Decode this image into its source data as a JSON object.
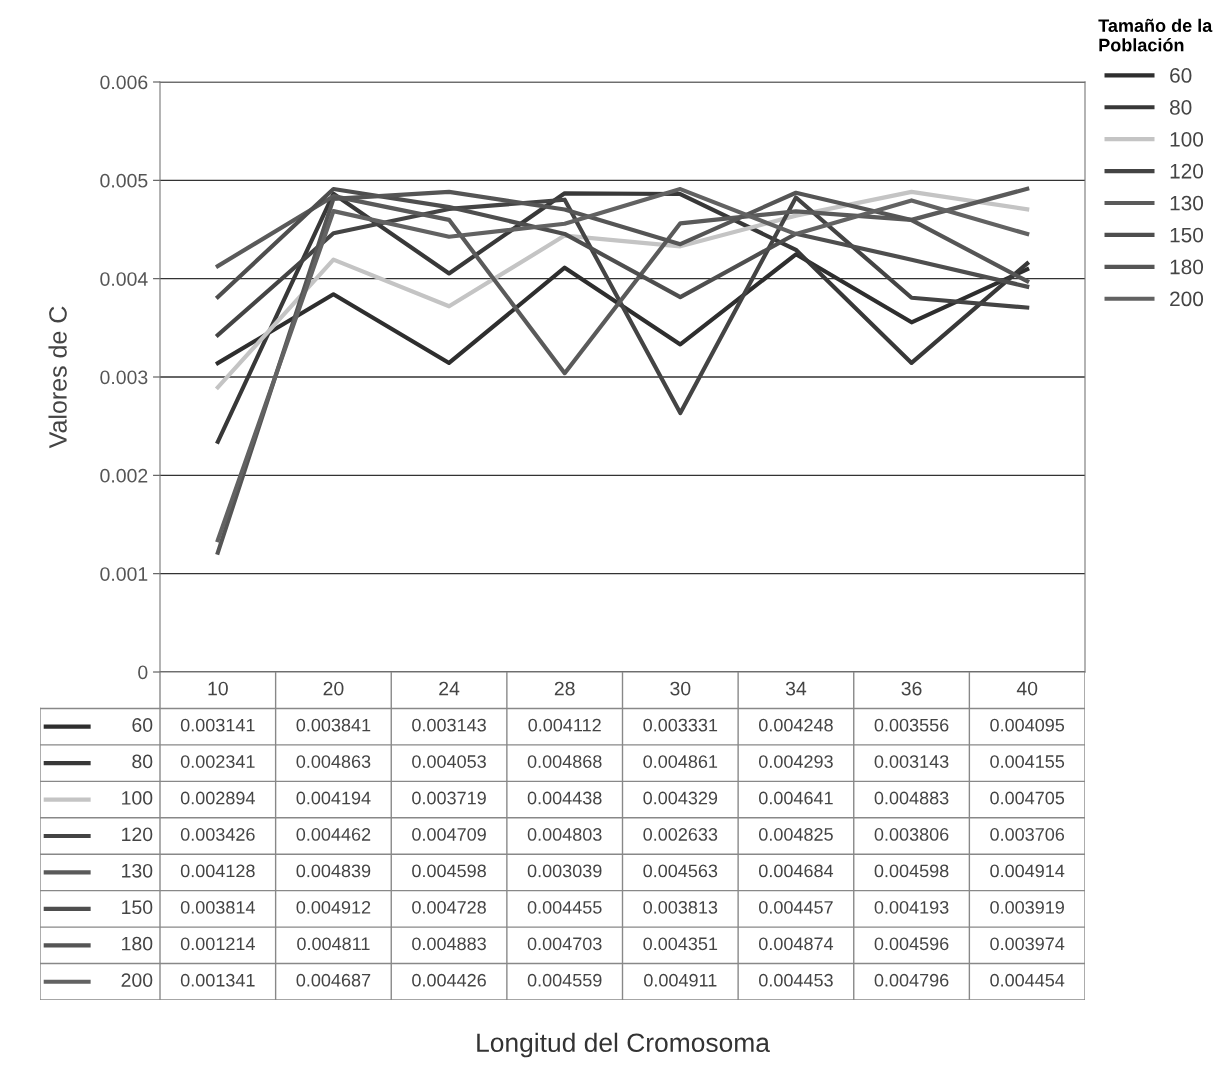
{
  "chart_data": {
    "type": "line",
    "annotations": [
      "Longitud del Cromosoma"
    ],
    "ylabel": "Valores de C",
    "legend_title": "Tamaño de la\nPoblación",
    "categories": [
      "10",
      "20",
      "24",
      "28",
      "30",
      "34",
      "36",
      "40"
    ],
    "ylim": [
      0,
      0.006
    ],
    "yticks": [
      {
        "value": 0,
        "label": "0"
      },
      0.001,
      0.002,
      0.003,
      0.004,
      0.005,
      0.006
    ],
    "grid": "y",
    "legend": "top right",
    "tick_labels": "y",
    "data_labels": true,
    "marker": "none",
    "line_style": "solid",
    "series": [
      {
        "name": "60",
        "color": "#2e2e2e",
        "values": [
          0.003141,
          0.003841,
          0.003143,
          0.004112,
          0.003331,
          0.004248,
          0.003556,
          0.004095
        ]
      },
      {
        "name": "80",
        "color": "#383838",
        "values": [
          0.002341,
          0.004863,
          0.004053,
          0.004868,
          0.004861,
          0.004293,
          0.003143,
          0.004155
        ]
      },
      {
        "name": "100",
        "color": "#c4c4c4",
        "values": [
          0.002894,
          0.004194,
          0.003719,
          0.004438,
          0.004329,
          0.004641,
          0.004883,
          0.004705
        ]
      },
      {
        "name": "120",
        "color": "#444444",
        "values": [
          0.003426,
          0.004462,
          0.004709,
          0.004803,
          0.002633,
          0.004825,
          0.003806,
          0.003706
        ]
      },
      {
        "name": "130",
        "color": "#5a5a5a",
        "values": [
          0.004128,
          0.004839,
          0.004598,
          0.003039,
          0.004563,
          0.004684,
          0.004598,
          0.004914
        ]
      },
      {
        "name": "150",
        "color": "#4e4e4e",
        "values": [
          0.003814,
          0.004912,
          0.004728,
          0.004455,
          0.003813,
          0.004457,
          0.004193,
          0.003919
        ]
      },
      {
        "name": "180",
        "color": "#555555",
        "values": [
          0.001214,
          0.004811,
          0.004883,
          0.004703,
          0.004351,
          0.004874,
          0.004596,
          0.003974
        ]
      },
      {
        "name": "200",
        "color": "#626262",
        "values": [
          0.001341,
          0.004687,
          0.004426,
          0.004559,
          0.004911,
          0.004453,
          0.004796,
          0.004454
        ]
      }
    ]
  }
}
